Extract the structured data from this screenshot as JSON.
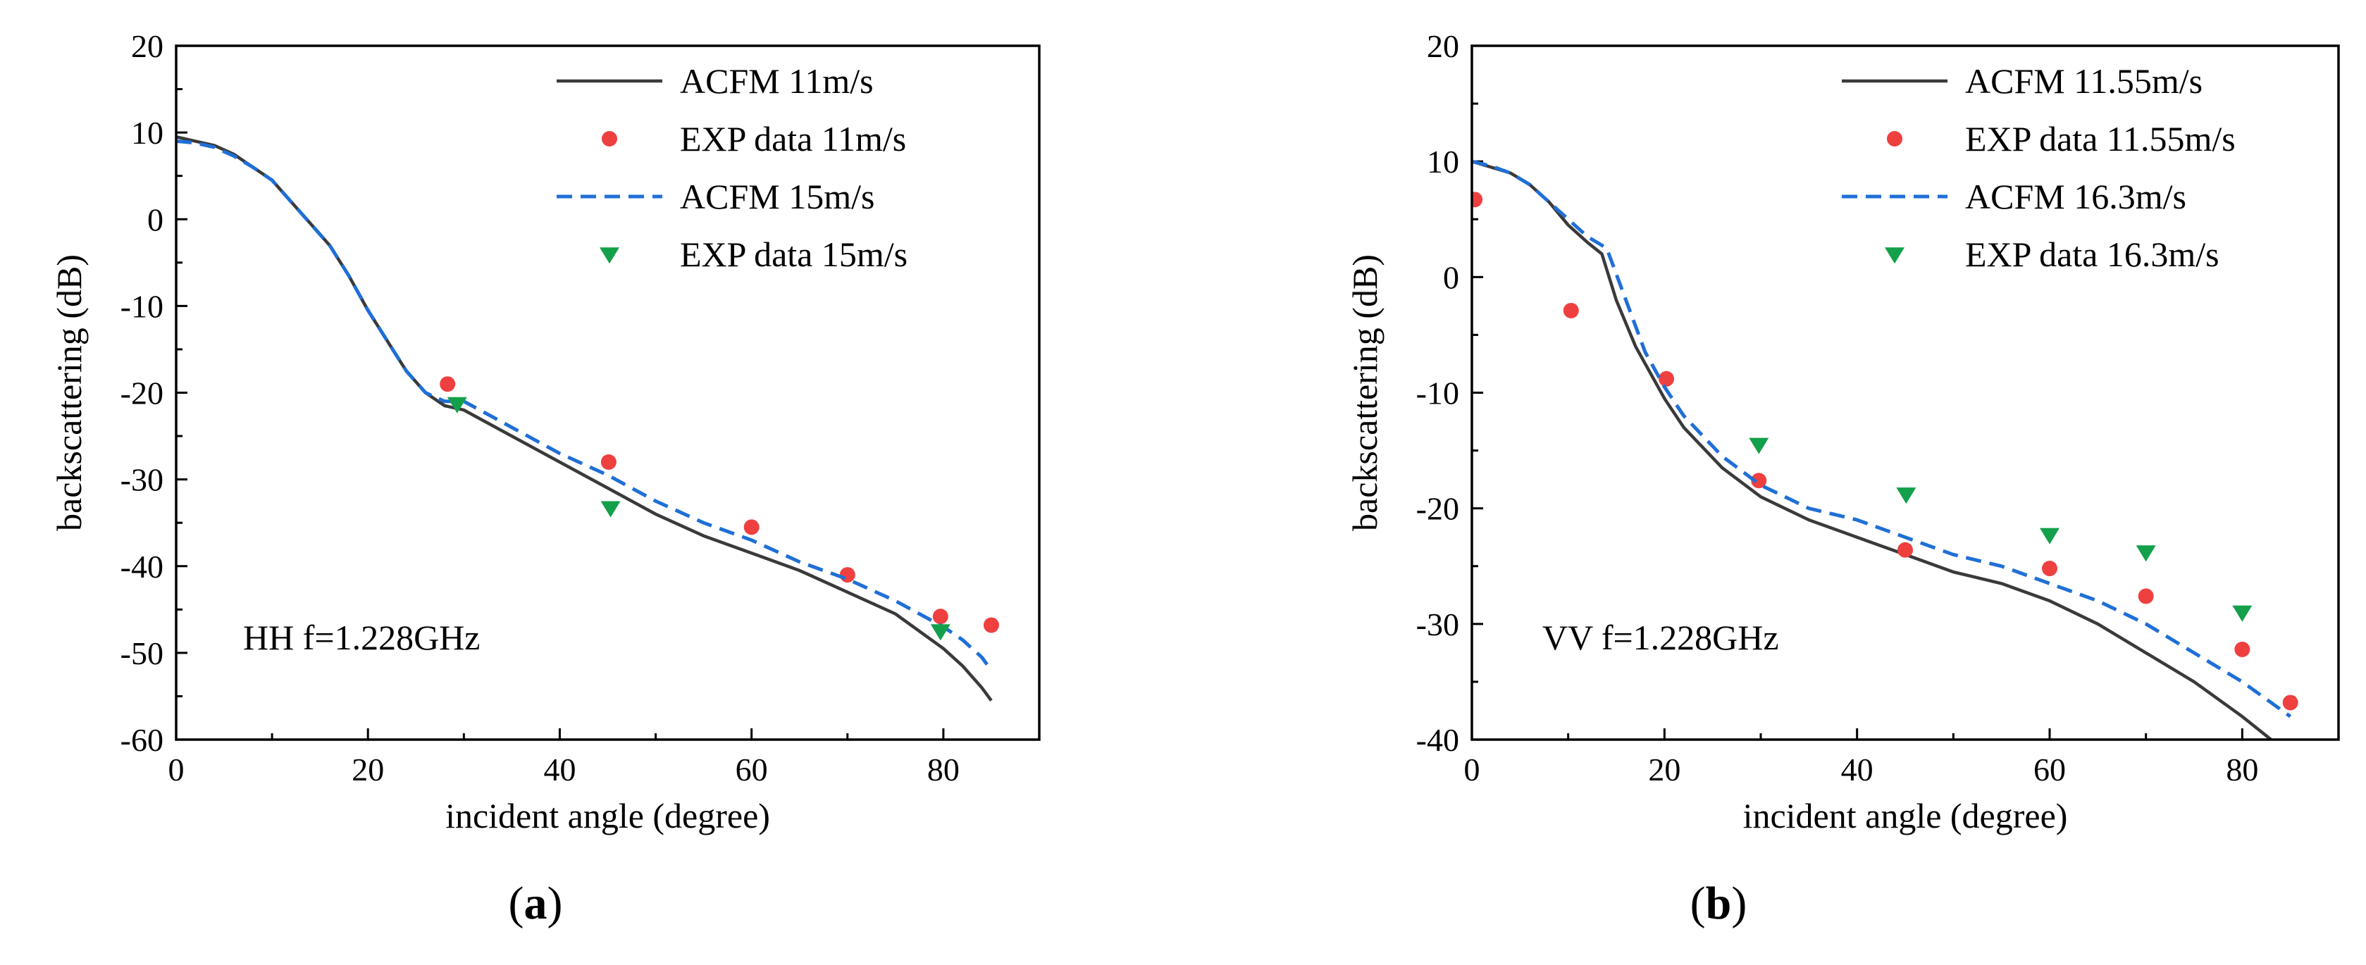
{
  "colors": {
    "acfm_a": "#3a3a3a",
    "acfm_b": "#1f6fd6",
    "exp_a": "#ef4040",
    "exp_b": "#13a04a"
  },
  "chart_data": [
    {
      "type": "line",
      "panel_label": "a",
      "annotation": "HH f=1.228GHz",
      "xlabel": "incident angle (degree)",
      "ylabel": "backscattering (dB)",
      "xlim": [
        0,
        90
      ],
      "ylim": [
        -60,
        20
      ],
      "xticks": [
        0,
        20,
        40,
        60,
        80
      ],
      "yticks": [
        -60,
        -50,
        -40,
        -30,
        -20,
        -10,
        0,
        10,
        20
      ],
      "legend_position": "top-right",
      "series": [
        {
          "name": "ACFM 11m/s",
          "kind": "line",
          "style": "solid",
          "color": "#3a3a3a",
          "x": [
            0,
            2,
            4,
            6,
            8,
            10,
            12,
            14,
            16,
            18,
            20,
            22,
            24,
            26,
            28,
            30,
            35,
            40,
            45,
            50,
            55,
            60,
            65,
            70,
            75,
            80,
            82,
            84,
            85
          ],
          "y": [
            9.5,
            9,
            8.5,
            7.5,
            6,
            4.5,
            2,
            -0.5,
            -3,
            -6.5,
            -10.5,
            -14,
            -17.5,
            -20,
            -21.5,
            -22,
            -25,
            -28,
            -31,
            -34,
            -36.5,
            -38.5,
            -40.5,
            -43,
            -45.5,
            -49.5,
            -51.5,
            -54,
            -55.5
          ]
        },
        {
          "name": "EXP data 11m/s",
          "kind": "scatter",
          "marker": "circle",
          "color": "#ef4040",
          "x": [
            28.3,
            45.1,
            60,
            70,
            79.7,
            85
          ],
          "y": [
            -19,
            -28,
            -35.5,
            -41,
            -45.8,
            -46.8
          ]
        },
        {
          "name": "ACFM 15m/s",
          "kind": "line",
          "style": "dashed",
          "color": "#1f6fd6",
          "x": [
            0,
            2,
            4,
            6,
            8,
            10,
            12,
            14,
            16,
            18,
            20,
            22,
            24,
            26,
            28,
            30,
            35,
            40,
            45,
            50,
            55,
            60,
            65,
            70,
            75,
            80,
            82,
            84,
            85
          ],
          "y": [
            9,
            8.8,
            8.3,
            7.3,
            6,
            4.5,
            2,
            -0.5,
            -3,
            -6.5,
            -10.5,
            -14,
            -17.5,
            -20,
            -21,
            -21,
            -24,
            -27,
            -29.5,
            -32.5,
            -35,
            -37,
            -39.5,
            -41.5,
            -44,
            -47,
            -48.5,
            -50.5,
            -52
          ]
        },
        {
          "name": "EXP data 15m/s",
          "kind": "scatter",
          "marker": "triangle-down",
          "color": "#13a04a",
          "x": [
            29.3,
            45.3,
            79.7
          ],
          "y": [
            -21.3,
            -33.3,
            -47.5
          ]
        }
      ]
    },
    {
      "type": "line",
      "panel_label": "b",
      "annotation": "VV f=1.228GHz",
      "xlabel": "incident angle (degree)",
      "ylabel": "backscattering (dB)",
      "xlim": [
        0,
        90
      ],
      "ylim": [
        -40,
        20
      ],
      "xticks": [
        0,
        20,
        40,
        60,
        80
      ],
      "yticks": [
        -40,
        -30,
        -20,
        -10,
        0,
        10,
        20
      ],
      "legend_position": "top-right",
      "series": [
        {
          "name": "ACFM 11.55m/s",
          "kind": "line",
          "style": "solid",
          "color": "#3a3a3a",
          "x": [
            0,
            2,
            4,
            6,
            8,
            10,
            12,
            13.5,
            15,
            17,
            19,
            20,
            22,
            26,
            30,
            35,
            40,
            45,
            50,
            55,
            60,
            65,
            70,
            75,
            80,
            83
          ],
          "y": [
            10,
            9.5,
            9,
            8,
            6.5,
            4.5,
            3,
            2,
            -2,
            -6,
            -9,
            -10.5,
            -13,
            -16.5,
            -19,
            -21,
            -22.5,
            -24,
            -25.5,
            -26.5,
            -28,
            -30,
            -32.5,
            -35,
            -38,
            -40
          ]
        },
        {
          "name": "EXP data 11.55m/s",
          "kind": "scatter",
          "marker": "circle",
          "color": "#ef4040",
          "x": [
            0.3,
            10.3,
            20.2,
            29.8,
            45,
            60,
            70,
            80,
            85
          ],
          "y": [
            6.7,
            -2.9,
            -8.8,
            -17.6,
            -23.6,
            -25.2,
            -27.6,
            -32.2,
            -36.8
          ]
        },
        {
          "name": "ACFM 16.3m/s",
          "kind": "line",
          "style": "dashed",
          "color": "#1f6fd6",
          "x": [
            0,
            2,
            4,
            6,
            8,
            10,
            12,
            14,
            16,
            18,
            20,
            22,
            26,
            30,
            35,
            40,
            45,
            50,
            55,
            60,
            65,
            70,
            75,
            80,
            85
          ],
          "y": [
            10,
            9.6,
            9,
            8,
            6.5,
            5,
            3.5,
            2.5,
            -2,
            -6.5,
            -9.5,
            -12,
            -15.5,
            -18,
            -20,
            -21,
            -22.5,
            -24,
            -25,
            -26.5,
            -28,
            -30,
            -32.5,
            -35,
            -38
          ]
        },
        {
          "name": "EXP data 16.3m/s",
          "kind": "scatter",
          "marker": "triangle-down",
          "color": "#13a04a",
          "x": [
            29.8,
            45.1,
            60,
            70,
            80
          ],
          "y": [
            -14.5,
            -18.8,
            -22.3,
            -23.8,
            -29
          ]
        }
      ]
    }
  ]
}
